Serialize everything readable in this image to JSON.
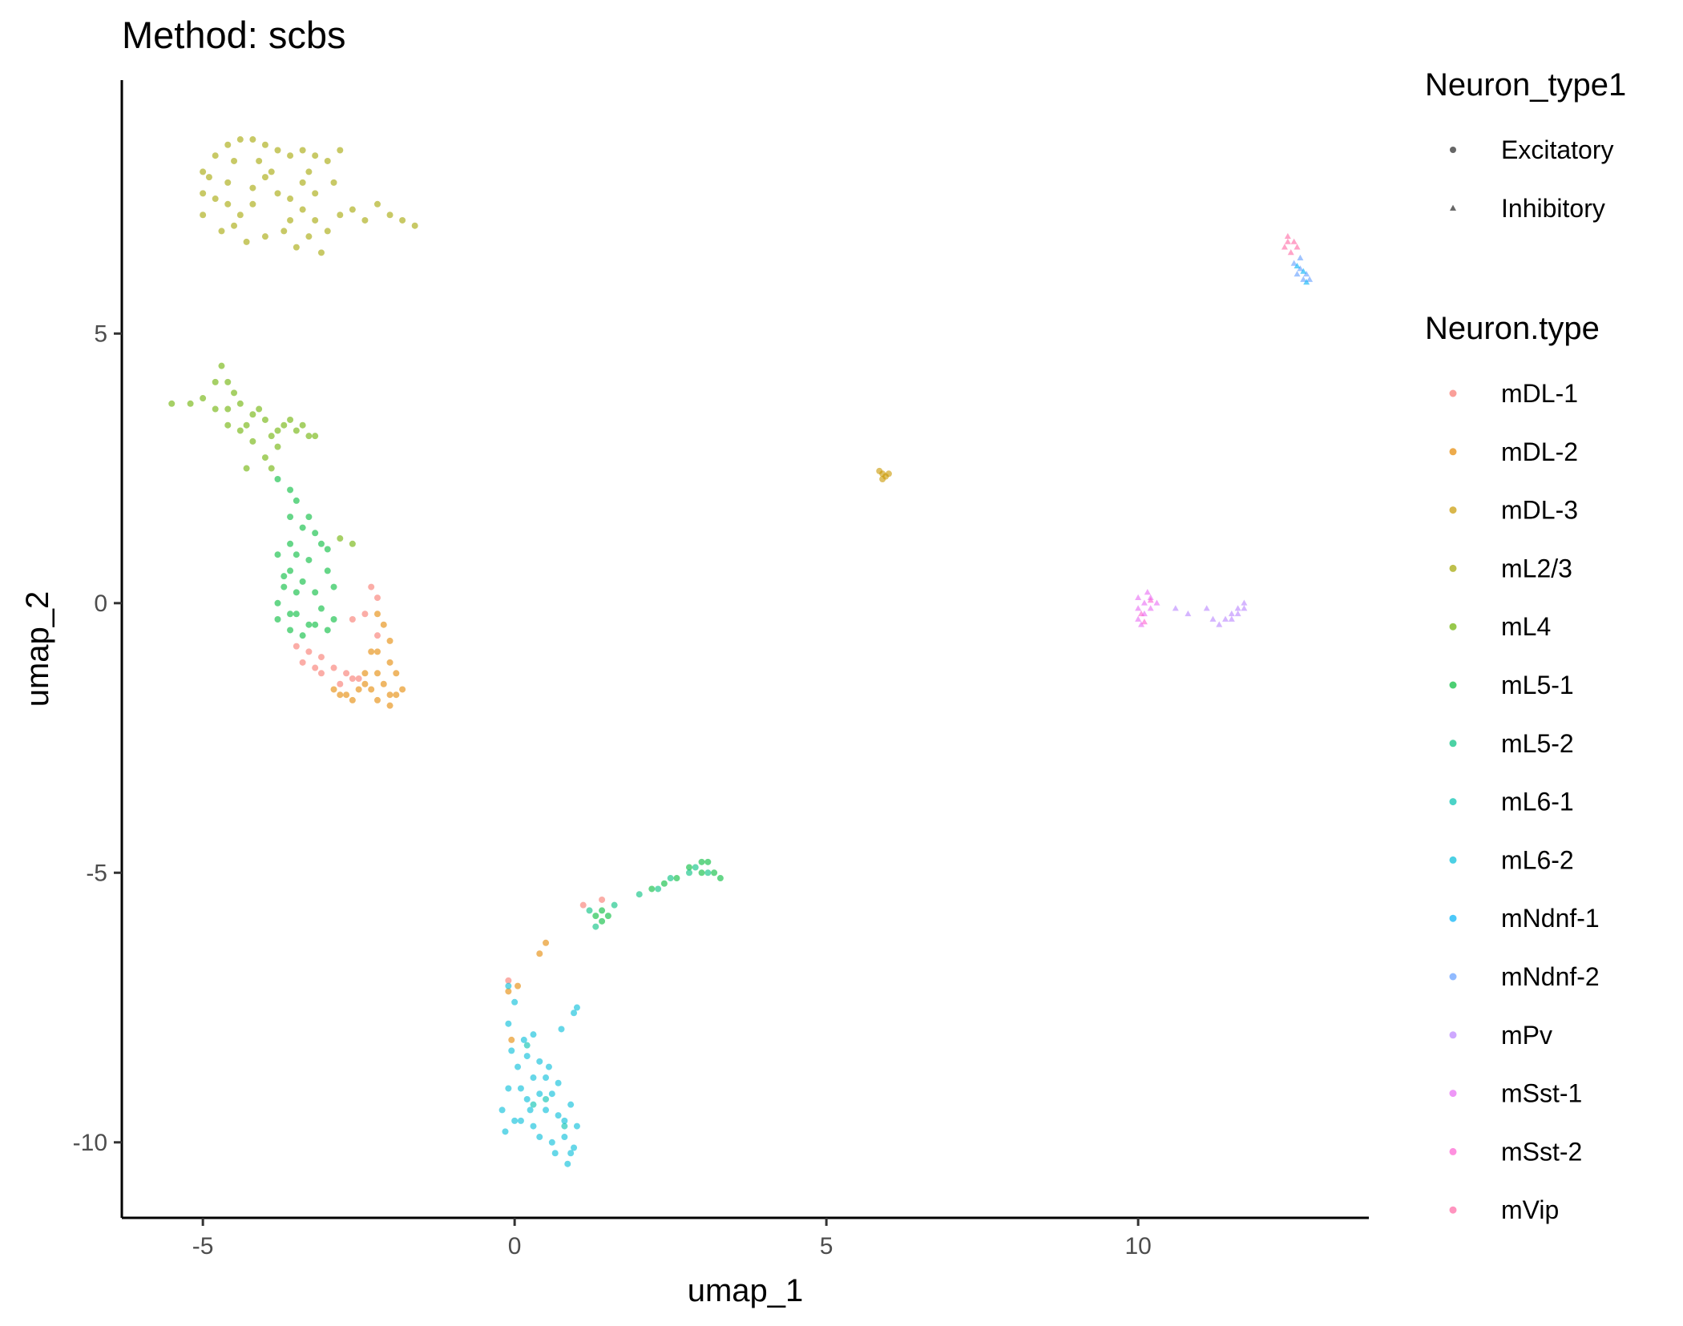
{
  "chart_data": {
    "type": "scatter",
    "title": "Method: scbs",
    "xlabel": "umap_1",
    "ylabel": "umap_2",
    "xlim": [
      -6.3,
      13.7
    ],
    "ylim": [
      -11.4,
      9.7
    ],
    "x_ticks": [
      -5,
      0,
      5,
      10
    ],
    "y_ticks": [
      -10,
      -5,
      0,
      5
    ],
    "x_tick_labels": [
      "-5",
      "0",
      "5",
      "10"
    ],
    "y_tick_labels": [
      "-10",
      "-5",
      "0",
      "5"
    ],
    "grid": false,
    "legend_position": "right",
    "shape_legend": {
      "title": "Neuron_type1",
      "entries": [
        {
          "name": "Excitatory",
          "shape": "circle"
        },
        {
          "name": "Inhibitory",
          "shape": "triangle"
        }
      ]
    },
    "color_legend": {
      "title": "Neuron.type",
      "entries": [
        {
          "name": "mDL-1",
          "color": "#F8766D"
        },
        {
          "name": "mDL-2",
          "color": "#E58700"
        },
        {
          "name": "mDL-3",
          "color": "#C99800"
        },
        {
          "name": "mL2/3",
          "color": "#A3A500"
        },
        {
          "name": "mL4",
          "color": "#6BB100"
        },
        {
          "name": "mL5-1",
          "color": "#00BA38"
        },
        {
          "name": "mL5-2",
          "color": "#00BF7D"
        },
        {
          "name": "mL6-1",
          "color": "#00C0AF"
        },
        {
          "name": "mL6-2",
          "color": "#00BCD8"
        },
        {
          "name": "mNdnf-1",
          "color": "#00B0F6"
        },
        {
          "name": "mNdnf-2",
          "color": "#619CFF"
        },
        {
          "name": "mPv",
          "color": "#B983FF"
        },
        {
          "name": "mSst-1",
          "color": "#E76BF3"
        },
        {
          "name": "mSst-2",
          "color": "#FD61D1"
        },
        {
          "name": "mVip",
          "color": "#FF67A4"
        }
      ]
    },
    "series": [
      {
        "name": "mL2/3",
        "shape": "circle",
        "points": [
          [
            -5,
            8
          ],
          [
            -4.8,
            8.3
          ],
          [
            -4.6,
            8.5
          ],
          [
            -4.4,
            8.6
          ],
          [
            -4.2,
            8.6
          ],
          [
            -4,
            8.5
          ],
          [
            -3.8,
            8.4
          ],
          [
            -3.6,
            8.3
          ],
          [
            -3.4,
            8.4
          ],
          [
            -3.2,
            8.3
          ],
          [
            -3,
            8.2
          ],
          [
            -5,
            7.6
          ],
          [
            -4.8,
            7.5
          ],
          [
            -4.6,
            7.8
          ],
          [
            -4.4,
            7.2
          ],
          [
            -4.2,
            7.4
          ],
          [
            -4,
            7.9
          ],
          [
            -3.8,
            7.6
          ],
          [
            -3.6,
            7.5
          ],
          [
            -3.4,
            7.8
          ],
          [
            -5,
            7.2
          ],
          [
            -4.7,
            6.9
          ],
          [
            -4.5,
            7
          ],
          [
            -4.3,
            6.7
          ],
          [
            -4,
            6.8
          ],
          [
            -3.7,
            6.9
          ],
          [
            -3.5,
            6.6
          ],
          [
            -3.3,
            6.8
          ],
          [
            -3,
            6.9
          ],
          [
            -2.8,
            7.2
          ],
          [
            -2.6,
            7.3
          ],
          [
            -2.4,
            7.1
          ],
          [
            -2.2,
            7.4
          ],
          [
            -2,
            7.2
          ],
          [
            -1.8,
            7.1
          ],
          [
            -1.6,
            7
          ],
          [
            -3.6,
            7.1
          ],
          [
            -3.4,
            7.3
          ],
          [
            -3.2,
            7.6
          ],
          [
            -2.9,
            7.8
          ],
          [
            -4.9,
            7.9
          ],
          [
            -4.5,
            8.2
          ],
          [
            -4.1,
            8.2
          ],
          [
            -3.9,
            8
          ],
          [
            -3.3,
            8
          ],
          [
            -2.8,
            8.4
          ],
          [
            -4.6,
            7.4
          ],
          [
            -4.2,
            7.7
          ],
          [
            -3.2,
            7.1
          ],
          [
            -3.1,
            6.5
          ]
        ]
      },
      {
        "name": "mL4",
        "shape": "circle",
        "points": [
          [
            -5.5,
            3.7
          ],
          [
            -5.2,
            3.7
          ],
          [
            -5,
            3.8
          ],
          [
            -4.8,
            4.1
          ],
          [
            -4.7,
            4.4
          ],
          [
            -4.6,
            3.6
          ],
          [
            -4.4,
            3.7
          ],
          [
            -4.2,
            3.5
          ],
          [
            -4,
            3.4
          ],
          [
            -3.8,
            3.2
          ],
          [
            -3.6,
            3.4
          ],
          [
            -3.4,
            3.3
          ],
          [
            -3.3,
            3.1
          ],
          [
            -4.5,
            3.9
          ],
          [
            -4.3,
            3.3
          ],
          [
            -4.1,
            3.6
          ],
          [
            -3.9,
            3.1
          ],
          [
            -3.7,
            3.3
          ],
          [
            -3.5,
            3.2
          ],
          [
            -4.6,
            3.3
          ],
          [
            -4.2,
            3
          ],
          [
            -3.8,
            2.9
          ],
          [
            -3.2,
            3.1
          ],
          [
            -4.8,
            3.6
          ],
          [
            -4.6,
            4.1
          ],
          [
            -4.4,
            3.2
          ],
          [
            -4,
            2.7
          ],
          [
            -3.9,
            2.5
          ],
          [
            -4.3,
            2.5
          ],
          [
            -2.8,
            1.2
          ],
          [
            -2.6,
            1.1
          ]
        ]
      },
      {
        "name": "mL5-1",
        "shape": "circle",
        "points": [
          [
            -3.8,
            2.3
          ],
          [
            -3.6,
            2.1
          ],
          [
            -3.5,
            1.9
          ],
          [
            -3.6,
            1.6
          ],
          [
            -3.4,
            1.4
          ],
          [
            -3.6,
            1.1
          ],
          [
            -3.8,
            0.9
          ],
          [
            -3.6,
            0.6
          ],
          [
            -3.4,
            0.4
          ],
          [
            -3.7,
            0.3
          ],
          [
            -3.8,
            0
          ],
          [
            -3.5,
            -0.2
          ],
          [
            -3.3,
            -0.4
          ],
          [
            -3.6,
            -0.5
          ],
          [
            -3.8,
            -0.3
          ],
          [
            -3.2,
            0.2
          ],
          [
            -3,
            0.6
          ],
          [
            -3.1,
            -0.1
          ],
          [
            -2.9,
            -0.3
          ],
          [
            -3.3,
            0.8
          ],
          [
            -3,
            1
          ],
          [
            -3.2,
            1.3
          ],
          [
            -3.5,
            0.9
          ],
          [
            -3.7,
            0.5
          ],
          [
            -3.4,
            -0.6
          ],
          [
            -3,
            -0.5
          ],
          [
            -3.6,
            -0.2
          ],
          [
            -3.2,
            -0.4
          ],
          [
            -2.9,
            0.3
          ],
          [
            -3.5,
            0.2
          ],
          [
            -3.3,
            1.6
          ],
          [
            -3.1,
            1.1
          ],
          [
            2.8,
            -4.9
          ],
          [
            3,
            -4.8
          ],
          [
            3.1,
            -4.8
          ],
          [
            3.2,
            -5
          ],
          [
            3,
            -5
          ],
          [
            2.6,
            -5.1
          ],
          [
            2.4,
            -5.2
          ],
          [
            2.2,
            -5.3
          ],
          [
            1.4,
            -5.7
          ],
          [
            1.5,
            -5.8
          ],
          [
            1.3,
            -5.8
          ],
          [
            1.4,
            -5.9
          ],
          [
            3.3,
            -5.1
          ]
        ]
      },
      {
        "name": "mL5-2",
        "shape": "circle",
        "points": [
          [
            2.8,
            -5
          ],
          [
            2.9,
            -4.9
          ],
          [
            2.5,
            -5.1
          ],
          [
            2.3,
            -5.3
          ],
          [
            2,
            -5.4
          ],
          [
            1.6,
            -5.6
          ],
          [
            1.2,
            -5.7
          ],
          [
            1.3,
            -6
          ],
          [
            3.1,
            -5
          ]
        ]
      },
      {
        "name": "mDL-1",
        "shape": "circle",
        "points": [
          [
            -3.5,
            -0.8
          ],
          [
            -3.3,
            -0.9
          ],
          [
            -3.1,
            -1
          ],
          [
            -2.9,
            -1.2
          ],
          [
            -2.7,
            -1.3
          ],
          [
            -2.5,
            -1.4
          ],
          [
            -3.4,
            -1.1
          ],
          [
            -3.2,
            -1.2
          ],
          [
            -2.4,
            -0.2
          ],
          [
            -2.3,
            0.3
          ],
          [
            -2.2,
            0.1
          ],
          [
            -2.6,
            -0.3
          ],
          [
            -2.8,
            -1.5
          ],
          [
            -2.6,
            -1.4
          ],
          [
            -3.1,
            -1.3
          ],
          [
            -2.2,
            -0.6
          ],
          [
            1.4,
            -5.5
          ],
          [
            1.1,
            -5.6
          ],
          [
            -0.1,
            -7
          ]
        ]
      },
      {
        "name": "mDL-2",
        "shape": "circle",
        "points": [
          [
            -2.2,
            -0.2
          ],
          [
            -2.1,
            -0.4
          ],
          [
            -2,
            -0.7
          ],
          [
            -2.2,
            -0.9
          ],
          [
            -2,
            -1.1
          ],
          [
            -1.9,
            -1.3
          ],
          [
            -2.1,
            -1.5
          ],
          [
            -2.3,
            -1.6
          ],
          [
            -2.5,
            -1.6
          ],
          [
            -2.7,
            -1.7
          ],
          [
            -2.9,
            -1.6
          ],
          [
            -2.4,
            -1.3
          ],
          [
            -2.2,
            -1.3
          ],
          [
            -1.8,
            -1.6
          ],
          [
            -2,
            -1.7
          ],
          [
            -2.6,
            -1.8
          ],
          [
            -2.8,
            -1.7
          ],
          [
            -2.3,
            -0.9
          ],
          [
            -2.4,
            -1.5
          ],
          [
            -1.9,
            -1.7
          ],
          [
            -2.2,
            -1.8
          ],
          [
            -2,
            -1.9
          ],
          [
            0.4,
            -6.5
          ],
          [
            0.5,
            -6.3
          ],
          [
            -0.1,
            -7.2
          ],
          [
            0.05,
            -7.1
          ],
          [
            -0.05,
            -8.1
          ]
        ]
      },
      {
        "name": "mDL-3",
        "shape": "circle",
        "points": [
          [
            5.9,
            2.4
          ],
          [
            5.95,
            2.35
          ],
          [
            5.85,
            2.45
          ],
          [
            5.9,
            2.3
          ],
          [
            6,
            2.4
          ]
        ]
      },
      {
        "name": "mL6-2",
        "shape": "circle",
        "points": [
          [
            -0.1,
            -7.1
          ],
          [
            0,
            -7.4
          ],
          [
            -0.1,
            -7.8
          ],
          [
            -0.05,
            -8.3
          ],
          [
            0.05,
            -8.6
          ],
          [
            -0.1,
            -9
          ],
          [
            -0.2,
            -9.4
          ],
          [
            -0.15,
            -9.8
          ],
          [
            0.1,
            -9.6
          ],
          [
            0.2,
            -9.2
          ],
          [
            0.3,
            -8.8
          ],
          [
            0.4,
            -8.5
          ],
          [
            0.5,
            -8.8
          ],
          [
            0.6,
            -9.1
          ],
          [
            0.7,
            -9.5
          ],
          [
            0.8,
            -9.9
          ],
          [
            0.9,
            -10.2
          ],
          [
            0.85,
            -10.4
          ],
          [
            0.6,
            -10
          ],
          [
            0.4,
            -9.9
          ],
          [
            0.3,
            -9.7
          ],
          [
            0.5,
            -9.4
          ],
          [
            0.7,
            -8.9
          ],
          [
            0.9,
            -9.3
          ],
          [
            1,
            -9.7
          ],
          [
            0.2,
            -8.4
          ],
          [
            0.1,
            -9
          ],
          [
            0,
            -9.6
          ],
          [
            0.4,
            -9.1
          ],
          [
            0.8,
            -9.6
          ],
          [
            0.3,
            -8
          ],
          [
            0.15,
            -8.1
          ],
          [
            0.55,
            -8.6
          ],
          [
            0.65,
            -10.2
          ],
          [
            0.95,
            -10.1
          ],
          [
            0.25,
            -9.4
          ],
          [
            1,
            -7.5
          ],
          [
            0.95,
            -7.6
          ],
          [
            0.75,
            -7.9
          ]
        ]
      },
      {
        "name": "mL6-1",
        "shape": "circle",
        "points": [
          [
            0.2,
            -8.2
          ],
          [
            0.5,
            -9.2
          ],
          [
            0.8,
            -9.7
          ],
          [
            0.3,
            -9.3
          ]
        ]
      },
      {
        "name": "mVip",
        "shape": "triangle",
        "points": [
          [
            12.4,
            6.8
          ],
          [
            12.5,
            6.7
          ],
          [
            12.35,
            6.6
          ],
          [
            12.45,
            6.5
          ],
          [
            12.55,
            6.6
          ],
          [
            12.4,
            6.7
          ]
        ]
      },
      {
        "name": "mNdnf-2",
        "shape": "triangle",
        "points": [
          [
            12.5,
            6.3
          ],
          [
            12.6,
            6.2
          ],
          [
            12.7,
            6.1
          ],
          [
            12.65,
            6
          ],
          [
            12.55,
            6.1
          ],
          [
            12.75,
            6
          ],
          [
            12.6,
            6.4
          ]
        ]
      },
      {
        "name": "mNdnf-1",
        "shape": "triangle",
        "points": [
          [
            12.55,
            6.25
          ],
          [
            12.65,
            6.15
          ],
          [
            12.7,
            5.95
          ]
        ]
      },
      {
        "name": "mSst-1",
        "shape": "triangle",
        "points": [
          [
            10,
            0.1
          ],
          [
            10.1,
            0
          ],
          [
            10.2,
            0.1
          ],
          [
            10,
            -0.1
          ],
          [
            10.1,
            -0.2
          ],
          [
            10,
            -0.3
          ],
          [
            10.05,
            -0.4
          ],
          [
            10.2,
            -0.1
          ],
          [
            10.3,
            0
          ],
          [
            10.15,
            0.2
          ]
        ]
      },
      {
        "name": "mSst-2",
        "shape": "triangle",
        "points": [
          [
            10.05,
            -0.2
          ],
          [
            10.1,
            -0.35
          ],
          [
            10.2,
            0.05
          ]
        ]
      },
      {
        "name": "mPv",
        "shape": "triangle",
        "points": [
          [
            10.6,
            -0.1
          ],
          [
            10.8,
            -0.2
          ],
          [
            11.1,
            -0.1
          ],
          [
            11.2,
            -0.3
          ],
          [
            11.4,
            -0.3
          ],
          [
            11.5,
            -0.2
          ],
          [
            11.6,
            -0.1
          ],
          [
            11.7,
            0
          ],
          [
            11.5,
            -0.3
          ],
          [
            11.3,
            -0.4
          ],
          [
            11.6,
            -0.2
          ],
          [
            11.7,
            -0.1
          ]
        ]
      }
    ]
  }
}
